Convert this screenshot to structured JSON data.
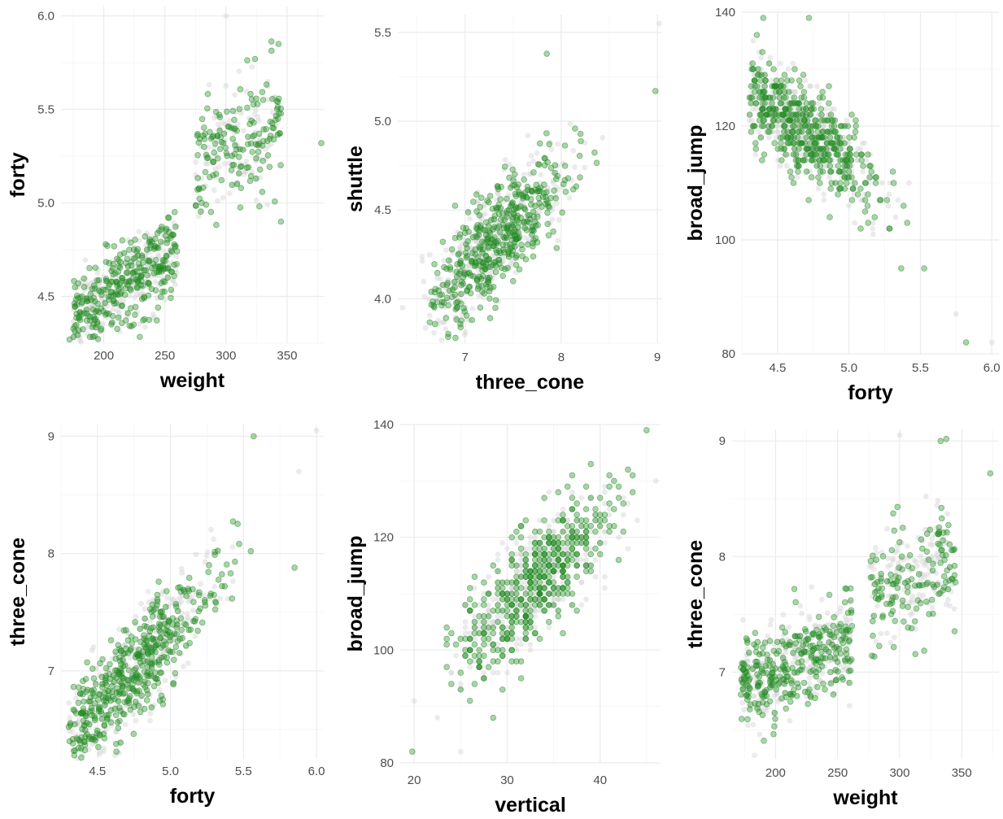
{
  "colors": {
    "highlight": "#228b22",
    "background_points": "#d3d3d3"
  },
  "chart_data": [
    {
      "type": "scatter",
      "xlabel": "weight",
      "ylabel": "forty",
      "xlim": [
        165,
        380
      ],
      "ylim": [
        4.25,
        6.05
      ],
      "xticks": [
        200,
        250,
        300,
        350
      ],
      "yticks": [
        4.5,
        5.0,
        5.5,
        6.0
      ],
      "xtick_labels": [
        "200",
        "250",
        "300",
        "350"
      ],
      "ytick_labels": [
        "4.5",
        "5.0",
        "5.5",
        "6.0"
      ],
      "gen": {
        "mode": "clusters",
        "clusters": [
          {
            "n": 520,
            "x": [
              175,
              260
            ],
            "y0": 4.4,
            "slope": 0.0038,
            "noise": 0.11
          },
          {
            "n": 260,
            "x": [
              275,
              345
            ],
            "y0": 5.18,
            "slope": 0.0035,
            "noise": 0.16
          }
        ]
      },
      "extra_points": [
        {
          "x": 300,
          "y": 6.0,
          "hl": false
        },
        {
          "x": 343,
          "y": 5.85,
          "hl": true
        },
        {
          "x": 378,
          "y": 5.32,
          "hl": true
        },
        {
          "x": 345,
          "y": 4.9,
          "hl": true
        },
        {
          "x": 172,
          "y": 4.27,
          "hl": true
        }
      ]
    },
    {
      "type": "scatter",
      "xlabel": "three_cone",
      "ylabel": "shuttle",
      "xlim": [
        6.3,
        9.05
      ],
      "ylim": [
        3.75,
        5.6
      ],
      "xticks": [
        7,
        8,
        9
      ],
      "yticks": [
        4.0,
        4.5,
        5.0,
        5.5
      ],
      "xtick_labels": [
        "7",
        "8",
        "9"
      ],
      "ytick_labels": [
        "4.0",
        "4.5",
        "5.0",
        "5.5"
      ],
      "gen": {
        "mode": "linear",
        "n": 760,
        "x": [
          6.55,
          8.6
        ],
        "xcenter": 7.3,
        "xspread": 0.36,
        "y0": 4.31,
        "slope": 0.52,
        "noise": 0.15
      },
      "extra_points": [
        {
          "x": 9.02,
          "y": 5.55,
          "hl": false
        },
        {
          "x": 8.98,
          "y": 5.17,
          "hl": true
        },
        {
          "x": 7.85,
          "y": 5.38,
          "hl": true
        },
        {
          "x": 6.35,
          "y": 3.95,
          "hl": false
        },
        {
          "x": 6.9,
          "y": 3.78,
          "hl": true
        }
      ]
    },
    {
      "type": "scatter",
      "xlabel": "forty",
      "ylabel": "broad_jump",
      "xlim": [
        4.25,
        6.05
      ],
      "ylim": [
        80,
        140
      ],
      "xticks": [
        4.5,
        5.0,
        5.5,
        6.0
      ],
      "yticks": [
        80,
        100,
        120,
        140
      ],
      "xtick_labels": [
        "4.5",
        "5.0",
        "5.5",
        "6.0"
      ],
      "ytick_labels": [
        "80",
        "100",
        "120",
        "140"
      ],
      "gen": {
        "mode": "linear",
        "n": 760,
        "x": [
          4.3,
          5.65
        ],
        "xcenter": 4.7,
        "xspread": 0.26,
        "y0": 119,
        "slope": -18,
        "noise": 4.0,
        "round": 1
      },
      "extra_points": [
        {
          "x": 5.82,
          "y": 82,
          "hl": true
        },
        {
          "x": 6.0,
          "y": 82,
          "hl": false
        },
        {
          "x": 5.75,
          "y": 87,
          "hl": false
        },
        {
          "x": 4.4,
          "y": 139,
          "hl": true
        },
        {
          "x": 4.72,
          "y": 139,
          "hl": true
        }
      ]
    },
    {
      "type": "scatter",
      "xlabel": "forty",
      "ylabel": "three_cone",
      "xlim": [
        4.25,
        6.05
      ],
      "ylim": [
        6.25,
        9.1
      ],
      "xticks": [
        4.5,
        5.0,
        5.5,
        6.0
      ],
      "yticks": [
        7,
        8,
        9
      ],
      "xtick_labels": [
        "4.5",
        "5.0",
        "5.5",
        "6.0"
      ],
      "ytick_labels": [
        "7",
        "8",
        "9"
      ],
      "gen": {
        "mode": "linear",
        "n": 760,
        "x": [
          4.3,
          5.65
        ],
        "xcenter": 4.75,
        "xspread": 0.28,
        "y0": 7.0,
        "slope": 1.35,
        "noise": 0.22
      },
      "extra_points": [
        {
          "x": 6.0,
          "y": 9.05,
          "hl": false
        },
        {
          "x": 5.57,
          "y": 9.0,
          "hl": true
        },
        {
          "x": 5.85,
          "y": 7.88,
          "hl": true
        },
        {
          "x": 5.88,
          "y": 8.7,
          "hl": false
        },
        {
          "x": 4.62,
          "y": 6.28,
          "hl": false
        }
      ]
    },
    {
      "type": "scatter",
      "xlabel": "vertical",
      "ylabel": "broad_jump",
      "xlim": [
        18.5,
        46.5
      ],
      "ylim": [
        80,
        140
      ],
      "xticks": [
        20,
        30,
        40
      ],
      "yticks": [
        80,
        100,
        120,
        140
      ],
      "xtick_labels": [
        "20",
        "30",
        "40"
      ],
      "ytick_labels": [
        "80",
        "100",
        "120",
        "140"
      ],
      "gen": {
        "mode": "linear",
        "n": 760,
        "x": [
          22,
          44
        ],
        "xcenter": 33,
        "xspread": 4.2,
        "y0": 112,
        "slope": 1.45,
        "noise": 5.0,
        "round": 1,
        "xround": 0.5
      },
      "extra_points": [
        {
          "x": 19.8,
          "y": 82,
          "hl": true
        },
        {
          "x": 20,
          "y": 91,
          "hl": false
        },
        {
          "x": 45,
          "y": 139,
          "hl": true
        },
        {
          "x": 46,
          "y": 130,
          "hl": false
        },
        {
          "x": 25,
          "y": 82,
          "hl": false
        }
      ]
    },
    {
      "type": "scatter",
      "xlabel": "weight",
      "ylabel": "three_cone",
      "xlim": [
        165,
        380
      ],
      "ylim": [
        6.25,
        9.1
      ],
      "xticks": [
        200,
        250,
        300,
        350
      ],
      "yticks": [
        7,
        8,
        9
      ],
      "xtick_labels": [
        "200",
        "250",
        "300",
        "350"
      ],
      "ytick_labels": [
        "7",
        "8",
        "9"
      ],
      "gen": {
        "mode": "clusters",
        "clusters": [
          {
            "n": 520,
            "x": [
              172,
              262
            ],
            "y0": 6.9,
            "slope": 0.0042,
            "noise": 0.2
          },
          {
            "n": 260,
            "x": [
              276,
              345
            ],
            "y0": 7.7,
            "slope": 0.004,
            "noise": 0.25
          }
        ]
      },
      "extra_points": [
        {
          "x": 300,
          "y": 9.05,
          "hl": false
        },
        {
          "x": 333,
          "y": 9.0,
          "hl": true
        },
        {
          "x": 373,
          "y": 8.72,
          "hl": true
        },
        {
          "x": 183,
          "y": 6.28,
          "hl": false
        }
      ]
    }
  ]
}
